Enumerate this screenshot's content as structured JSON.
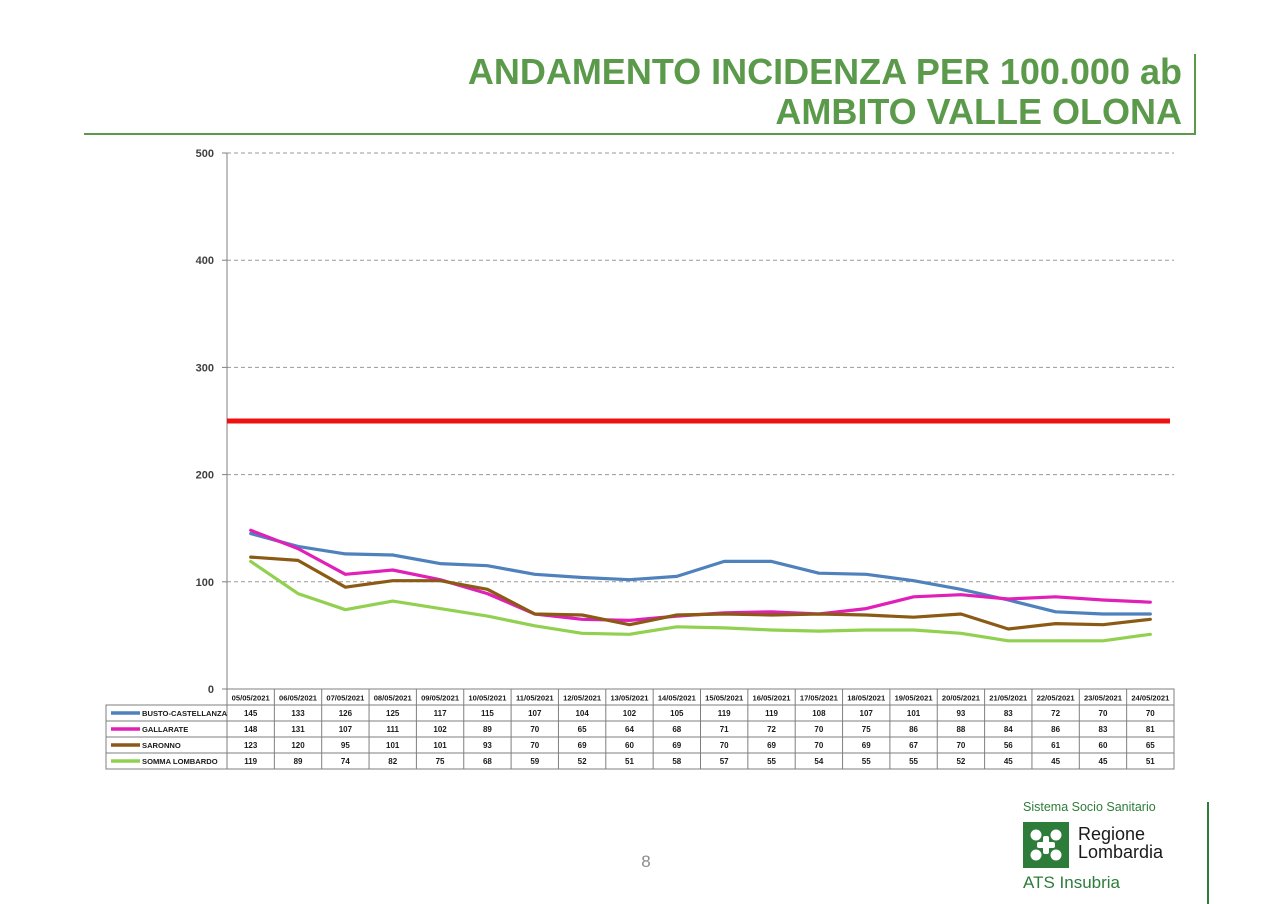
{
  "slide": {
    "title_line1": "ANDAMENTO INCIDENZA PER 100.000 ab",
    "title_line2": "AMBITO VALLE OLONA",
    "page_number": "8",
    "accent_color": "#5a9a4a"
  },
  "logo": {
    "system_text": "Sistema Socio Sanitario",
    "region_line1": "Regione",
    "region_line2": "Lombardia",
    "agency": "ATS Insubria",
    "color": "#2d7c3a"
  },
  "chart_data": {
    "type": "line",
    "title": "",
    "xlabel": "",
    "ylabel": "",
    "ylim": [
      0,
      500
    ],
    "yticks": [
      0,
      100,
      200,
      300,
      400,
      500
    ],
    "grid": "horizontal dashed",
    "legend": "data table below chart",
    "threshold": {
      "value": 250,
      "color": "#ee1111"
    },
    "categories": [
      "05/05/2021",
      "06/05/2021",
      "07/05/2021",
      "08/05/2021",
      "09/05/2021",
      "10/05/2021",
      "11/05/2021",
      "12/05/2021",
      "13/05/2021",
      "14/05/2021",
      "15/05/2021",
      "16/05/2021",
      "17/05/2021",
      "18/05/2021",
      "19/05/2021",
      "20/05/2021",
      "21/05/2021",
      "22/05/2021",
      "23/05/2021",
      "24/05/2021"
    ],
    "series": [
      {
        "name": "BUSTO-CASTELLANZA",
        "color": "#4f81bd",
        "values": [
          145,
          133,
          126,
          125,
          117,
          115,
          107,
          104,
          102,
          105,
          119,
          119,
          108,
          107,
          101,
          93,
          83,
          72,
          70,
          70
        ]
      },
      {
        "name": "GALLARATE",
        "color": "#e020b8",
        "values": [
          148,
          131,
          107,
          111,
          102,
          89,
          70,
          65,
          64,
          68,
          71,
          72,
          70,
          75,
          86,
          88,
          84,
          86,
          83,
          81
        ]
      },
      {
        "name": "SARONNO",
        "color": "#8b5a14",
        "values": [
          123,
          120,
          95,
          101,
          101,
          93,
          70,
          69,
          60,
          69,
          70,
          69,
          70,
          69,
          67,
          70,
          56,
          61,
          60,
          65
        ]
      },
      {
        "name": "SOMMA LOMBARDO",
        "color": "#92d050",
        "values": [
          119,
          89,
          74,
          82,
          75,
          68,
          59,
          52,
          51,
          58,
          57,
          55,
          54,
          55,
          55,
          52,
          45,
          45,
          45,
          51
        ]
      }
    ]
  }
}
